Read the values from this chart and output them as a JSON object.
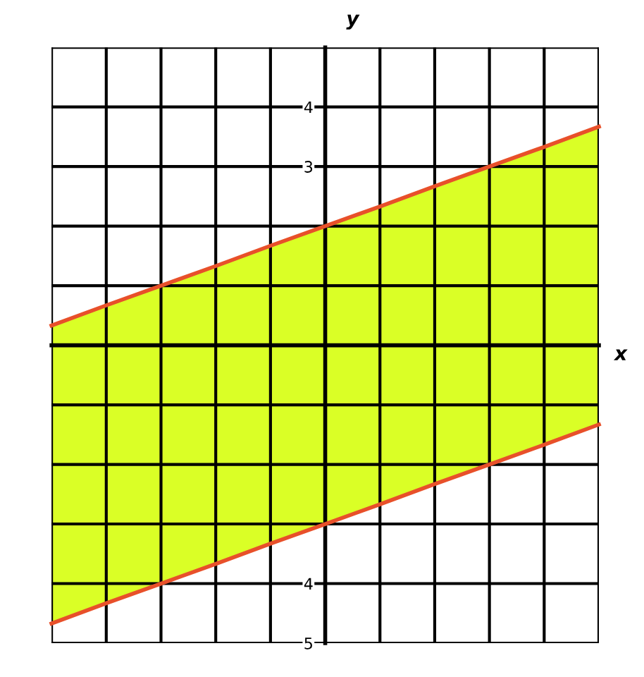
{
  "chart_data": {
    "type": "line",
    "xlabel": "x",
    "ylabel": "y",
    "ylim": [
      -5,
      5
    ],
    "categories": [
      null,
      null,
      null,
      null,
      null,
      null,
      null,
      null,
      null,
      null,
      null
    ],
    "yticks": [
      {
        "value": -5,
        "label": "5"
      },
      {
        "value": -4,
        "label": "4"
      },
      {
        "value": -3,
        "label": null
      },
      {
        "value": -2,
        "label": null
      },
      {
        "value": -1,
        "label": null
      },
      {
        "value": 0,
        "label": null
      },
      {
        "value": 1,
        "label": null
      },
      {
        "value": 2,
        "label": null
      },
      {
        "value": 3,
        "label": "3"
      },
      {
        "value": 4,
        "label": "4"
      },
      {
        "value": 5,
        "label": null
      }
    ],
    "grid": true,
    "line_style": "solid",
    "tick_labels": "y",
    "series": [
      {
        "color": "#e8502a",
        "values": [
          0.33,
          0.67,
          1,
          1.33,
          1.67,
          2,
          2.33,
          2.67,
          3,
          3.33,
          3.67
        ],
        "lower": [
          -4.67,
          -4.33,
          -4,
          -3.67,
          -3.33,
          -3,
          -2.67,
          -2.33,
          -2,
          -1.67,
          -1.33
        ],
        "upper": [
          0.33,
          0.67,
          1,
          1.33,
          1.67,
          2,
          2.33,
          2.67,
          3,
          3.33,
          3.67
        ]
      },
      {
        "color": "#e8502a",
        "values": [
          -4.67,
          -4.33,
          -4,
          -3.67,
          -3.33,
          -3,
          -2.67,
          -2.33,
          -2,
          -1.67,
          -1.33
        ]
      }
    ]
  }
}
